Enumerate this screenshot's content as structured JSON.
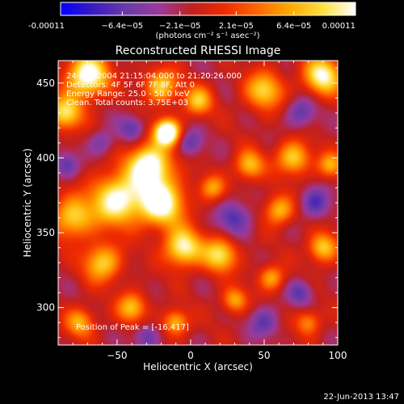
{
  "chart_data": {
    "type": "heatmap",
    "title": "Reconstructed RHESSI Image",
    "xlabel": "Heliocentric X (arcsec)",
    "ylabel": "Heliocentric Y (arcsec)",
    "xlim": [
      -90,
      100
    ],
    "ylim": [
      275,
      465
    ],
    "x_ticks": [
      -50,
      0,
      50,
      100
    ],
    "y_ticks": [
      300,
      350,
      400,
      450
    ],
    "x_tick_labels": [
      "−50",
      "0",
      "50",
      "100"
    ],
    "y_tick_labels": [
      "300",
      "350",
      "400",
      "450"
    ],
    "colorbar": {
      "range": [
        -0.00011,
        0.00011
      ],
      "tick_values": [
        -0.00011,
        -6.4e-05,
        -2.1e-05,
        2.1e-05,
        6.4e-05,
        0.00011
      ],
      "tick_labels": [
        "-0.00011",
        "−6.4e−05",
        "−2.1e−05",
        "2.1e−05",
        "6.4e−05",
        "0.00011"
      ],
      "unit_label": "(photons cm⁻² s⁻¹ asec⁻²)",
      "colormap": [
        "#0000ff",
        "#3a1cc0",
        "#6a3aa8",
        "#9a3a9a",
        "#c02020",
        "#ee2a00",
        "#ff6600",
        "#ffaa00",
        "#ffe040",
        "#ffffff"
      ]
    },
    "annotations": [
      "24-Feb-2004 21:15:04.000 to 21:20:26.000",
      "Detectors: 4F 5F 6F 7F 8F, Att 0",
      "Energy Range: 25.0 - 50.0 keV",
      "Clean. Total counts: 3.75E+03"
    ],
    "peak_label": "Position of Peak = [-16,417]",
    "peak": {
      "x": -16,
      "y": 417
    },
    "sources": [
      {
        "x": -16,
        "y": 417,
        "sigma": 6,
        "amp": 1.0
      },
      {
        "x": -28,
        "y": 395,
        "sigma": 10,
        "amp": 0.85
      },
      {
        "x": -50,
        "y": 372,
        "sigma": 12,
        "amp": 0.75
      },
      {
        "x": -20,
        "y": 370,
        "sigma": 11,
        "amp": 0.8
      },
      {
        "x": -5,
        "y": 340,
        "sigma": 9,
        "amp": 0.7
      },
      {
        "x": 20,
        "y": 335,
        "sigma": 8,
        "amp": 0.6
      },
      {
        "x": -60,
        "y": 330,
        "sigma": 9,
        "amp": 0.55
      },
      {
        "x": -80,
        "y": 360,
        "sigma": 10,
        "amp": 0.55
      },
      {
        "x": -70,
        "y": 455,
        "sigma": 10,
        "amp": 0.8
      },
      {
        "x": -85,
        "y": 430,
        "sigma": 8,
        "amp": 0.6
      },
      {
        "x": -20,
        "y": 448,
        "sigma": 8,
        "amp": 0.55
      },
      {
        "x": 5,
        "y": 438,
        "sigma": 7,
        "amp": 0.5
      },
      {
        "x": 50,
        "y": 445,
        "sigma": 9,
        "amp": 0.55
      },
      {
        "x": 90,
        "y": 455,
        "sigma": 9,
        "amp": 0.7
      },
      {
        "x": 40,
        "y": 395,
        "sigma": 7,
        "amp": 0.5
      },
      {
        "x": 70,
        "y": 400,
        "sigma": 8,
        "amp": 0.55
      },
      {
        "x": 95,
        "y": 395,
        "sigma": 6,
        "amp": 0.45
      },
      {
        "x": 60,
        "y": 365,
        "sigma": 7,
        "amp": 0.5
      },
      {
        "x": 90,
        "y": 340,
        "sigma": 7,
        "amp": 0.55
      },
      {
        "x": 55,
        "y": 320,
        "sigma": 6,
        "amp": 0.45
      },
      {
        "x": 30,
        "y": 305,
        "sigma": 6,
        "amp": 0.45
      },
      {
        "x": -40,
        "y": 300,
        "sigma": 7,
        "amp": 0.5
      },
      {
        "x": -75,
        "y": 290,
        "sigma": 7,
        "amp": 0.45
      },
      {
        "x": -10,
        "y": 290,
        "sigma": 6,
        "amp": 0.5
      },
      {
        "x": 80,
        "y": 290,
        "sigma": 6,
        "amp": 0.4
      },
      {
        "x": 15,
        "y": 380,
        "sigma": 6,
        "amp": 0.4
      },
      {
        "x": 0,
        "y": 410,
        "sigma": 6,
        "amp": -0.3
      },
      {
        "x": -40,
        "y": 420,
        "sigma": 6,
        "amp": -0.3
      },
      {
        "x": 30,
        "y": 360,
        "sigma": 8,
        "amp": -0.35
      },
      {
        "x": 75,
        "y": 430,
        "sigma": 7,
        "amp": -0.3
      },
      {
        "x": 85,
        "y": 370,
        "sigma": 7,
        "amp": -0.35
      },
      {
        "x": 50,
        "y": 290,
        "sigma": 7,
        "amp": -0.3
      },
      {
        "x": -30,
        "y": 280,
        "sigma": 6,
        "amp": -0.3
      },
      {
        "x": -85,
        "y": 395,
        "sigma": 6,
        "amp": -0.3
      },
      {
        "x": 75,
        "y": 310,
        "sigma": 6,
        "amp": -0.3
      },
      {
        "x": -60,
        "y": 410,
        "sigma": 6,
        "amp": -0.25
      }
    ],
    "background_level": 0.28,
    "grid": false
  },
  "footer": {
    "date": "22-Jun-2013 13:47"
  }
}
